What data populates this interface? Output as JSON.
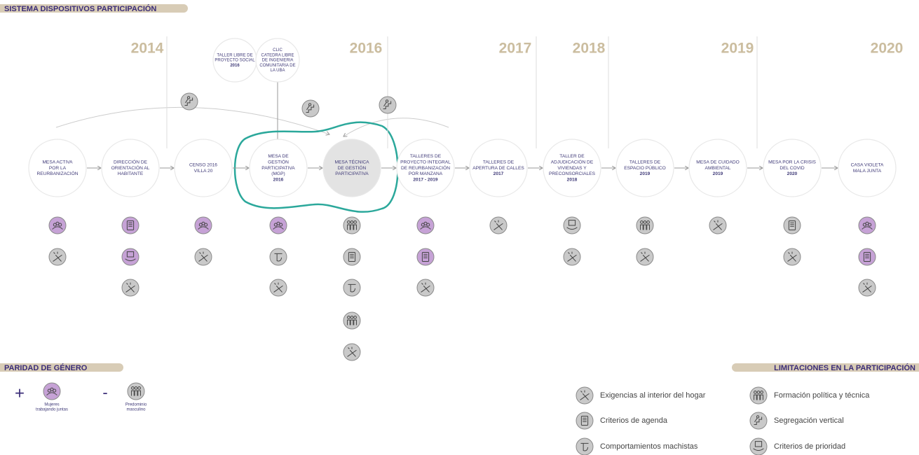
{
  "header": {
    "title": "SISTEMA DISPOSITIVOS PARTICIPACIÓN"
  },
  "years": [
    "2014",
    "2016",
    "2017",
    "2018",
    "2019",
    "2020"
  ],
  "side_nodes": [
    {
      "lines": [
        "TALLER LIBRE DE",
        "PROYECTO SOCIAL"
      ],
      "year": "2016"
    },
    {
      "lines": [
        "CLIC",
        "CATEDRA LIBRE",
        "DE INGENIERIA",
        "COMUNITARIA DE",
        "LA UBA"
      ]
    }
  ],
  "nodes": [
    {
      "lines": [
        "MESA ACTIVA",
        "POR LA",
        "REURBANIZACIÓN"
      ]
    },
    {
      "lines": [
        "DIRECCIÓN DE",
        "ORIENTACIÓN AL",
        "HABITANTE"
      ]
    },
    {
      "lines": [
        "CENSO 2016",
        "VILLA 20"
      ]
    },
    {
      "lines": [
        "MESA DE",
        "GESTIÓN",
        "PARTICIPATIVA",
        "(MGP)"
      ],
      "year": "2016"
    },
    {
      "lines": [
        "MESA TÉCNICA",
        "DE GESTIÓN",
        "PARTICIPATIVA"
      ]
    },
    {
      "lines": [
        "TALLERES DE",
        "PROYECTO INTEGRAL",
        "DE REURBANIZACIÓN",
        "POR MANZANA"
      ],
      "year": "2017 - 2019"
    },
    {
      "lines": [
        "TALLERES DE",
        "APERTURA DE CALLES"
      ],
      "year": "2017"
    },
    {
      "lines": [
        "TALLER DE",
        "ADJUDICACIÓN DE",
        "VIVIENDAS Y",
        "PRECONSORCIALES"
      ],
      "year": "2018"
    },
    {
      "lines": [
        "TALLERES DE",
        "ESPACIO PÚBLICO"
      ],
      "year": "2019"
    },
    {
      "lines": [
        "MESA DE CUIDADO",
        "AMBIENTAL"
      ],
      "year": "2019"
    },
    {
      "lines": [
        "MESA POR LA CRISIS",
        "DEL COVID"
      ],
      "year": "2020"
    },
    {
      "lines": [
        "CASA VIOLETA",
        "MALA JUNTA"
      ]
    }
  ],
  "gender": {
    "title": "PARIDAD DE GÉNERO",
    "plus": "+",
    "plus_lines": [
      "Mujeres",
      "trabajando juntas"
    ],
    "minus": "-",
    "minus_lines": [
      "Predominio",
      "masculino"
    ]
  },
  "limitations": {
    "title": "LIMITACIONES EN LA PARTICIPACIÓN",
    "items": [
      "Exigencias al interior del hogar",
      "Criterios de agenda",
      "Comportamientos machistas",
      "Formación política y técnica",
      "Segregación vertical",
      "Criterios de prioridad"
    ]
  }
}
